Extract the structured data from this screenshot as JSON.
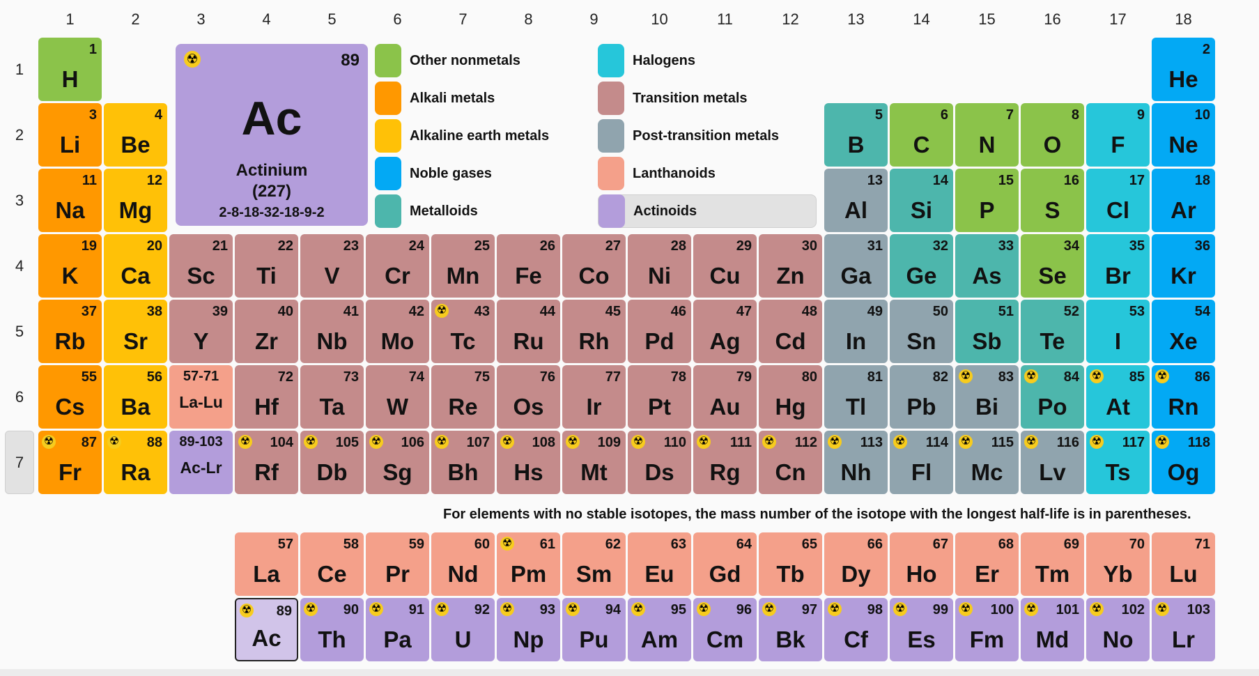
{
  "colors": {
    "nonmetal": "#8bc34a",
    "alkali": "#ff9800",
    "alkaline": "#ffc107",
    "noble": "#03a9f4",
    "metalloid": "#4db6ac",
    "halogen": "#26c6da",
    "transition": "#c48b8b",
    "post": "#90a4ae",
    "lanthanoid": "#f4a08a",
    "actinoid": "#b39ddb",
    "actinoid_selected": "#d1c4e9"
  },
  "group_numbers": [
    "1",
    "2",
    "3",
    "4",
    "5",
    "6",
    "7",
    "8",
    "9",
    "10",
    "11",
    "12",
    "13",
    "14",
    "15",
    "16",
    "17",
    "18"
  ],
  "period_numbers": [
    "1",
    "2",
    "3",
    "4",
    "5",
    "6",
    "7"
  ],
  "selected_period": "7",
  "selected_element": {
    "number": "89",
    "symbol": "Ac",
    "name": "Actinium",
    "mass": "(227)",
    "configuration": "2-8-18-32-18-9-2",
    "radioactive": true,
    "icon": "radioactive-icon"
  },
  "legend": [
    {
      "label": "Other nonmetals",
      "category": "nonmetal"
    },
    {
      "label": "Alkali metals",
      "category": "alkali"
    },
    {
      "label": "Alkaline earth metals",
      "category": "alkaline"
    },
    {
      "label": "Noble gases",
      "category": "noble"
    },
    {
      "label": "Metalloids",
      "category": "metalloid"
    },
    {
      "label": "Halogens",
      "category": "halogen"
    },
    {
      "label": "Transition metals",
      "category": "transition"
    },
    {
      "label": "Post-transition metals",
      "category": "post"
    },
    {
      "label": "Lanthanoids",
      "category": "lanthanoid"
    },
    {
      "label": "Actinoids",
      "category": "actinoid",
      "selected": true
    }
  ],
  "note": "For elements with no stable isotopes, the mass number of the isotope with the longest half-life is in parentheses.",
  "elements": [
    {
      "n": "1",
      "s": "H",
      "p": 1,
      "g": 1,
      "c": "nonmetal"
    },
    {
      "n": "2",
      "s": "He",
      "p": 1,
      "g": 18,
      "c": "noble"
    },
    {
      "n": "3",
      "s": "Li",
      "p": 2,
      "g": 1,
      "c": "alkali"
    },
    {
      "n": "4",
      "s": "Be",
      "p": 2,
      "g": 2,
      "c": "alkaline"
    },
    {
      "n": "5",
      "s": "B",
      "p": 2,
      "g": 13,
      "c": "metalloid"
    },
    {
      "n": "6",
      "s": "C",
      "p": 2,
      "g": 14,
      "c": "nonmetal"
    },
    {
      "n": "7",
      "s": "N",
      "p": 2,
      "g": 15,
      "c": "nonmetal"
    },
    {
      "n": "8",
      "s": "O",
      "p": 2,
      "g": 16,
      "c": "nonmetal"
    },
    {
      "n": "9",
      "s": "F",
      "p": 2,
      "g": 17,
      "c": "halogen"
    },
    {
      "n": "10",
      "s": "Ne",
      "p": 2,
      "g": 18,
      "c": "noble"
    },
    {
      "n": "11",
      "s": "Na",
      "p": 3,
      "g": 1,
      "c": "alkali"
    },
    {
      "n": "12",
      "s": "Mg",
      "p": 3,
      "g": 2,
      "c": "alkaline"
    },
    {
      "n": "13",
      "s": "Al",
      "p": 3,
      "g": 13,
      "c": "post"
    },
    {
      "n": "14",
      "s": "Si",
      "p": 3,
      "g": 14,
      "c": "metalloid"
    },
    {
      "n": "15",
      "s": "P",
      "p": 3,
      "g": 15,
      "c": "nonmetal"
    },
    {
      "n": "16",
      "s": "S",
      "p": 3,
      "g": 16,
      "c": "nonmetal"
    },
    {
      "n": "17",
      "s": "Cl",
      "p": 3,
      "g": 17,
      "c": "halogen"
    },
    {
      "n": "18",
      "s": "Ar",
      "p": 3,
      "g": 18,
      "c": "noble"
    },
    {
      "n": "19",
      "s": "K",
      "p": 4,
      "g": 1,
      "c": "alkali"
    },
    {
      "n": "20",
      "s": "Ca",
      "p": 4,
      "g": 2,
      "c": "alkaline"
    },
    {
      "n": "21",
      "s": "Sc",
      "p": 4,
      "g": 3,
      "c": "transition"
    },
    {
      "n": "22",
      "s": "Ti",
      "p": 4,
      "g": 4,
      "c": "transition"
    },
    {
      "n": "23",
      "s": "V",
      "p": 4,
      "g": 5,
      "c": "transition"
    },
    {
      "n": "24",
      "s": "Cr",
      "p": 4,
      "g": 6,
      "c": "transition"
    },
    {
      "n": "25",
      "s": "Mn",
      "p": 4,
      "g": 7,
      "c": "transition"
    },
    {
      "n": "26",
      "s": "Fe",
      "p": 4,
      "g": 8,
      "c": "transition"
    },
    {
      "n": "27",
      "s": "Co",
      "p": 4,
      "g": 9,
      "c": "transition"
    },
    {
      "n": "28",
      "s": "Ni",
      "p": 4,
      "g": 10,
      "c": "transition"
    },
    {
      "n": "29",
      "s": "Cu",
      "p": 4,
      "g": 11,
      "c": "transition"
    },
    {
      "n": "30",
      "s": "Zn",
      "p": 4,
      "g": 12,
      "c": "transition"
    },
    {
      "n": "31",
      "s": "Ga",
      "p": 4,
      "g": 13,
      "c": "post"
    },
    {
      "n": "32",
      "s": "Ge",
      "p": 4,
      "g": 14,
      "c": "metalloid"
    },
    {
      "n": "33",
      "s": "As",
      "p": 4,
      "g": 15,
      "c": "metalloid"
    },
    {
      "n": "34",
      "s": "Se",
      "p": 4,
      "g": 16,
      "c": "nonmetal"
    },
    {
      "n": "35",
      "s": "Br",
      "p": 4,
      "g": 17,
      "c": "halogen"
    },
    {
      "n": "36",
      "s": "Kr",
      "p": 4,
      "g": 18,
      "c": "noble"
    },
    {
      "n": "37",
      "s": "Rb",
      "p": 5,
      "g": 1,
      "c": "alkali"
    },
    {
      "n": "38",
      "s": "Sr",
      "p": 5,
      "g": 2,
      "c": "alkaline"
    },
    {
      "n": "39",
      "s": "Y",
      "p": 5,
      "g": 3,
      "c": "transition"
    },
    {
      "n": "40",
      "s": "Zr",
      "p": 5,
      "g": 4,
      "c": "transition"
    },
    {
      "n": "41",
      "s": "Nb",
      "p": 5,
      "g": 5,
      "c": "transition"
    },
    {
      "n": "42",
      "s": "Mo",
      "p": 5,
      "g": 6,
      "c": "transition"
    },
    {
      "n": "43",
      "s": "Tc",
      "p": 5,
      "g": 7,
      "c": "transition",
      "r": true
    },
    {
      "n": "44",
      "s": "Ru",
      "p": 5,
      "g": 8,
      "c": "transition"
    },
    {
      "n": "45",
      "s": "Rh",
      "p": 5,
      "g": 9,
      "c": "transition"
    },
    {
      "n": "46",
      "s": "Pd",
      "p": 5,
      "g": 10,
      "c": "transition"
    },
    {
      "n": "47",
      "s": "Ag",
      "p": 5,
      "g": 11,
      "c": "transition"
    },
    {
      "n": "48",
      "s": "Cd",
      "p": 5,
      "g": 12,
      "c": "transition"
    },
    {
      "n": "49",
      "s": "In",
      "p": 5,
      "g": 13,
      "c": "post"
    },
    {
      "n": "50",
      "s": "Sn",
      "p": 5,
      "g": 14,
      "c": "post"
    },
    {
      "n": "51",
      "s": "Sb",
      "p": 5,
      "g": 15,
      "c": "metalloid"
    },
    {
      "n": "52",
      "s": "Te",
      "p": 5,
      "g": 16,
      "c": "metalloid"
    },
    {
      "n": "53",
      "s": "I",
      "p": 5,
      "g": 17,
      "c": "halogen"
    },
    {
      "n": "54",
      "s": "Xe",
      "p": 5,
      "g": 18,
      "c": "noble"
    },
    {
      "n": "55",
      "s": "Cs",
      "p": 6,
      "g": 1,
      "c": "alkali"
    },
    {
      "n": "56",
      "s": "Ba",
      "p": 6,
      "g": 2,
      "c": "alkaline"
    },
    {
      "n": "",
      "s": "La-Lu",
      "range": "57-71",
      "p": 6,
      "g": 3,
      "c": "lanthanoid"
    },
    {
      "n": "72",
      "s": "Hf",
      "p": 6,
      "g": 4,
      "c": "transition"
    },
    {
      "n": "73",
      "s": "Ta",
      "p": 6,
      "g": 5,
      "c": "transition"
    },
    {
      "n": "74",
      "s": "W",
      "p": 6,
      "g": 6,
      "c": "transition"
    },
    {
      "n": "75",
      "s": "Re",
      "p": 6,
      "g": 7,
      "c": "transition"
    },
    {
      "n": "76",
      "s": "Os",
      "p": 6,
      "g": 8,
      "c": "transition"
    },
    {
      "n": "77",
      "s": "Ir",
      "p": 6,
      "g": 9,
      "c": "transition"
    },
    {
      "n": "78",
      "s": "Pt",
      "p": 6,
      "g": 10,
      "c": "transition"
    },
    {
      "n": "79",
      "s": "Au",
      "p": 6,
      "g": 11,
      "c": "transition"
    },
    {
      "n": "80",
      "s": "Hg",
      "p": 6,
      "g": 12,
      "c": "transition"
    },
    {
      "n": "81",
      "s": "Tl",
      "p": 6,
      "g": 13,
      "c": "post"
    },
    {
      "n": "82",
      "s": "Pb",
      "p": 6,
      "g": 14,
      "c": "post"
    },
    {
      "n": "83",
      "s": "Bi",
      "p": 6,
      "g": 15,
      "c": "post",
      "r": true
    },
    {
      "n": "84",
      "s": "Po",
      "p": 6,
      "g": 16,
      "c": "metalloid",
      "r": true
    },
    {
      "n": "85",
      "s": "At",
      "p": 6,
      "g": 17,
      "c": "halogen",
      "r": true
    },
    {
      "n": "86",
      "s": "Rn",
      "p": 6,
      "g": 18,
      "c": "noble",
      "r": true
    },
    {
      "n": "87",
      "s": "Fr",
      "p": 7,
      "g": 1,
      "c": "alkali",
      "r": true
    },
    {
      "n": "88",
      "s": "Ra",
      "p": 7,
      "g": 2,
      "c": "alkaline",
      "r": true
    },
    {
      "n": "",
      "s": "Ac-Lr",
      "range": "89-103",
      "p": 7,
      "g": 3,
      "c": "actinoid"
    },
    {
      "n": "104",
      "s": "Rf",
      "p": 7,
      "g": 4,
      "c": "transition",
      "r": true
    },
    {
      "n": "105",
      "s": "Db",
      "p": 7,
      "g": 5,
      "c": "transition",
      "r": true
    },
    {
      "n": "106",
      "s": "Sg",
      "p": 7,
      "g": 6,
      "c": "transition",
      "r": true
    },
    {
      "n": "107",
      "s": "Bh",
      "p": 7,
      "g": 7,
      "c": "transition",
      "r": true
    },
    {
      "n": "108",
      "s": "Hs",
      "p": 7,
      "g": 8,
      "c": "transition",
      "r": true
    },
    {
      "n": "109",
      "s": "Mt",
      "p": 7,
      "g": 9,
      "c": "transition",
      "r": true
    },
    {
      "n": "110",
      "s": "Ds",
      "p": 7,
      "g": 10,
      "c": "transition",
      "r": true
    },
    {
      "n": "111",
      "s": "Rg",
      "p": 7,
      "g": 11,
      "c": "transition",
      "r": true
    },
    {
      "n": "112",
      "s": "Cn",
      "p": 7,
      "g": 12,
      "c": "transition",
      "r": true
    },
    {
      "n": "113",
      "s": "Nh",
      "p": 7,
      "g": 13,
      "c": "post",
      "r": true
    },
    {
      "n": "114",
      "s": "Fl",
      "p": 7,
      "g": 14,
      "c": "post",
      "r": true
    },
    {
      "n": "115",
      "s": "Mc",
      "p": 7,
      "g": 15,
      "c": "post",
      "r": true
    },
    {
      "n": "116",
      "s": "Lv",
      "p": 7,
      "g": 16,
      "c": "post",
      "r": true
    },
    {
      "n": "117",
      "s": "Ts",
      "p": 7,
      "g": 17,
      "c": "halogen",
      "r": true
    },
    {
      "n": "118",
      "s": "Og",
      "p": 7,
      "g": 18,
      "c": "noble",
      "r": true
    },
    {
      "n": "57",
      "s": "La",
      "p": 9,
      "g": 4,
      "c": "lanthanoid"
    },
    {
      "n": "58",
      "s": "Ce",
      "p": 9,
      "g": 5,
      "c": "lanthanoid"
    },
    {
      "n": "59",
      "s": "Pr",
      "p": 9,
      "g": 6,
      "c": "lanthanoid"
    },
    {
      "n": "60",
      "s": "Nd",
      "p": 9,
      "g": 7,
      "c": "lanthanoid"
    },
    {
      "n": "61",
      "s": "Pm",
      "p": 9,
      "g": 8,
      "c": "lanthanoid",
      "r": true
    },
    {
      "n": "62",
      "s": "Sm",
      "p": 9,
      "g": 9,
      "c": "lanthanoid"
    },
    {
      "n": "63",
      "s": "Eu",
      "p": 9,
      "g": 10,
      "c": "lanthanoid"
    },
    {
      "n": "64",
      "s": "Gd",
      "p": 9,
      "g": 11,
      "c": "lanthanoid"
    },
    {
      "n": "65",
      "s": "Tb",
      "p": 9,
      "g": 12,
      "c": "lanthanoid"
    },
    {
      "n": "66",
      "s": "Dy",
      "p": 9,
      "g": 13,
      "c": "lanthanoid"
    },
    {
      "n": "67",
      "s": "Ho",
      "p": 9,
      "g": 14,
      "c": "lanthanoid"
    },
    {
      "n": "68",
      "s": "Er",
      "p": 9,
      "g": 15,
      "c": "lanthanoid"
    },
    {
      "n": "69",
      "s": "Tm",
      "p": 9,
      "g": 16,
      "c": "lanthanoid"
    },
    {
      "n": "70",
      "s": "Yb",
      "p": 9,
      "g": 17,
      "c": "lanthanoid"
    },
    {
      "n": "71",
      "s": "Lu",
      "p": 9,
      "g": 18,
      "c": "lanthanoid"
    },
    {
      "n": "89",
      "s": "Ac",
      "p": 10,
      "g": 4,
      "c": "actinoid",
      "r": true,
      "sel": true
    },
    {
      "n": "90",
      "s": "Th",
      "p": 10,
      "g": 5,
      "c": "actinoid",
      "r": true
    },
    {
      "n": "91",
      "s": "Pa",
      "p": 10,
      "g": 6,
      "c": "actinoid",
      "r": true
    },
    {
      "n": "92",
      "s": "U",
      "p": 10,
      "g": 7,
      "c": "actinoid",
      "r": true
    },
    {
      "n": "93",
      "s": "Np",
      "p": 10,
      "g": 8,
      "c": "actinoid",
      "r": true
    },
    {
      "n": "94",
      "s": "Pu",
      "p": 10,
      "g": 9,
      "c": "actinoid",
      "r": true
    },
    {
      "n": "95",
      "s": "Am",
      "p": 10,
      "g": 10,
      "c": "actinoid",
      "r": true
    },
    {
      "n": "96",
      "s": "Cm",
      "p": 10,
      "g": 11,
      "c": "actinoid",
      "r": true
    },
    {
      "n": "97",
      "s": "Bk",
      "p": 10,
      "g": 12,
      "c": "actinoid",
      "r": true
    },
    {
      "n": "98",
      "s": "Cf",
      "p": 10,
      "g": 13,
      "c": "actinoid",
      "r": true
    },
    {
      "n": "99",
      "s": "Es",
      "p": 10,
      "g": 14,
      "c": "actinoid",
      "r": true
    },
    {
      "n": "100",
      "s": "Fm",
      "p": 10,
      "g": 15,
      "c": "actinoid",
      "r": true
    },
    {
      "n": "101",
      "s": "Md",
      "p": 10,
      "g": 16,
      "c": "actinoid",
      "r": true
    },
    {
      "n": "102",
      "s": "No",
      "p": 10,
      "g": 17,
      "c": "actinoid",
      "r": true
    },
    {
      "n": "103",
      "s": "Lr",
      "p": 10,
      "g": 18,
      "c": "actinoid",
      "r": true
    }
  ]
}
